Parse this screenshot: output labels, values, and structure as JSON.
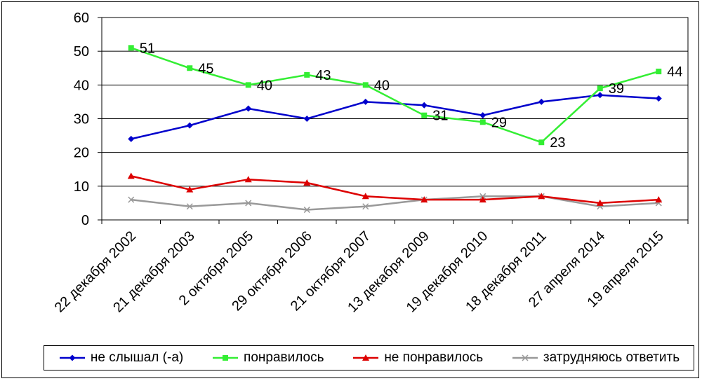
{
  "chart_data": {
    "type": "line",
    "title": "",
    "xlabel": "",
    "ylabel": "",
    "ylim": [
      0,
      60
    ],
    "yticks": [
      "0",
      "10",
      "20",
      "30",
      "40",
      "50",
      "60"
    ],
    "grid": "horizontal",
    "legend_position": "bottom",
    "categories": [
      "22 декабря 2002",
      "21 декабря 2003",
      "2 октября 2005",
      "29 октября 2006",
      "21 октября 2007",
      "13 декабря 2009",
      "19 декабря 2010",
      "18 декабря 2011",
      "27 апреля 2014",
      "19 апреля 2015"
    ],
    "series": [
      {
        "name": "не слышал (-а)",
        "color": "#0000cc",
        "marker": "diamond",
        "values": [
          24,
          28,
          33,
          30,
          35,
          34,
          31,
          35,
          37,
          36
        ],
        "labels": false
      },
      {
        "name": "понравилось",
        "color": "#33ee33",
        "marker": "square",
        "values": [
          51,
          45,
          40,
          43,
          40,
          31,
          29,
          23,
          39,
          44
        ],
        "labels": true
      },
      {
        "name": "не понравилось",
        "color": "#dd0000",
        "marker": "triangle",
        "values": [
          13,
          9,
          12,
          11,
          7,
          6,
          6,
          7,
          5,
          6
        ],
        "labels": false
      },
      {
        "name": "затрудняюсь ответить",
        "color": "#999999",
        "marker": "x",
        "values": [
          6,
          4,
          5,
          3,
          4,
          6,
          7,
          7,
          4,
          5
        ],
        "labels": false
      }
    ]
  }
}
